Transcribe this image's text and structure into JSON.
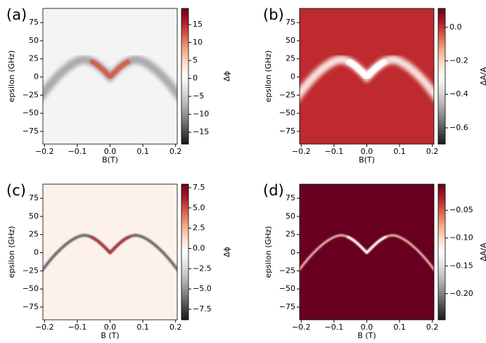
{
  "chart_data": [
    {
      "type": "heatmap",
      "panel_label": "(a)",
      "xlabel": "B(T)",
      "ylabel": "epsilon (GHz)",
      "colorbar_label": "Δϕ",
      "xlim": [
        -0.205,
        0.205
      ],
      "ylim": [
        -92.5,
        94.5
      ],
      "xticks": [
        {
          "value": -0.2,
          "label": "−0.2"
        },
        {
          "value": -0.1,
          "label": "−0.1"
        },
        {
          "value": 0,
          "label": "0.0"
        },
        {
          "value": 0.1,
          "label": "0.1"
        },
        {
          "value": 0.2,
          "label": "0.2"
        }
      ],
      "yticks": [
        75,
        50,
        25,
        0,
        {
          "value": -25,
          "label": "−25"
        },
        {
          "value": -50,
          "label": "−50"
        },
        {
          "value": -75,
          "label": "−75"
        }
      ],
      "clim": [
        -18.3,
        19.5
      ],
      "cticks": [
        15,
        10,
        5,
        0,
        {
          "value": -5,
          "label": "−5"
        },
        {
          "value": -10,
          "label": "−10"
        },
        {
          "value": -15,
          "label": "−15"
        }
      ],
      "background": "#f4f4f4"
    },
    {
      "type": "heatmap",
      "panel_label": "(b)",
      "xlabel": "B(T)",
      "ylabel": "epsilon (GHz)",
      "colorbar_label": "ΔA/A",
      "xlim": [
        -0.205,
        0.205
      ],
      "ylim": [
        -92.5,
        94.5
      ],
      "xticks": [
        {
          "value": -0.2,
          "label": "−0.2"
        },
        {
          "value": -0.1,
          "label": "−0.1"
        },
        {
          "value": 0,
          "label": "0.0"
        },
        {
          "value": 0.1,
          "label": "0.1"
        },
        {
          "value": 0.2,
          "label": "0.2"
        }
      ],
      "yticks": [
        75,
        50,
        25,
        0,
        {
          "value": -25,
          "label": "−25"
        },
        {
          "value": -50,
          "label": "−50"
        },
        {
          "value": -75,
          "label": "−75"
        }
      ],
      "clim": [
        -0.697,
        0.113
      ],
      "cticks": [
        {
          "value": 0,
          "label": "0.0"
        },
        {
          "value": -0.2,
          "label": "−0.2"
        },
        {
          "value": -0.4,
          "label": "−0.4"
        },
        {
          "value": -0.6,
          "label": "−0.6"
        }
      ],
      "background": "#be2a2e"
    },
    {
      "type": "heatmap",
      "panel_label": "(c)",
      "xlabel": "B (T)",
      "ylabel": "epsilon (GHz)",
      "colorbar_label": "Δϕ",
      "xlim": [
        -0.205,
        0.205
      ],
      "ylim": [
        -92.5,
        94.5
      ],
      "xticks": [
        {
          "value": -0.2,
          "label": "−0.2"
        },
        {
          "value": -0.1,
          "label": "−0.1"
        },
        {
          "value": 0,
          "label": "0.0"
        },
        {
          "value": 0.1,
          "label": "0.1"
        },
        {
          "value": 0.2,
          "label": "0.2"
        }
      ],
      "yticks": [
        75,
        50,
        25,
        0,
        {
          "value": -25,
          "label": "−25"
        },
        {
          "value": -50,
          "label": "−50"
        },
        {
          "value": -75,
          "label": "−75"
        }
      ],
      "clim": [
        -8.8,
        7.93
      ],
      "cticks": [
        7.5,
        {
          "value": 5,
          "label": "5.0"
        },
        2.5,
        {
          "value": 0,
          "label": "0.0"
        },
        {
          "value": -2.5,
          "label": "−2.5"
        },
        {
          "value": -5,
          "label": "−5.0"
        },
        {
          "value": -7.5,
          "label": "−7.5"
        }
      ],
      "background": "#fdf1ec"
    },
    {
      "type": "heatmap",
      "panel_label": "(d)",
      "xlabel": "B (T)",
      "ylabel": "epsilon (GHz)",
      "colorbar_label": "ΔA/A",
      "xlim": [
        -0.205,
        0.205
      ],
      "ylim": [
        -92.5,
        94.5
      ],
      "xticks": [
        {
          "value": -0.2,
          "label": "−0.2"
        },
        {
          "value": -0.1,
          "label": "−0.1"
        },
        {
          "value": 0,
          "label": "0.0"
        },
        {
          "value": 0.1,
          "label": "0.1"
        },
        {
          "value": 0.2,
          "label": "0.2"
        }
      ],
      "yticks": [
        75,
        50,
        25,
        0,
        {
          "value": -25,
          "label": "−25"
        },
        {
          "value": -50,
          "label": "−50"
        },
        {
          "value": -75,
          "label": "−75"
        }
      ],
      "clim": [
        -0.247,
        -0.003
      ],
      "cticks": [
        {
          "value": -0.05,
          "label": "−0.05"
        },
        {
          "value": -0.1,
          "label": "−0.10"
        },
        {
          "value": -0.15,
          "label": "−0.15"
        },
        {
          "value": -0.2,
          "label": "−0.20"
        }
      ],
      "background": "#69001f"
    }
  ]
}
